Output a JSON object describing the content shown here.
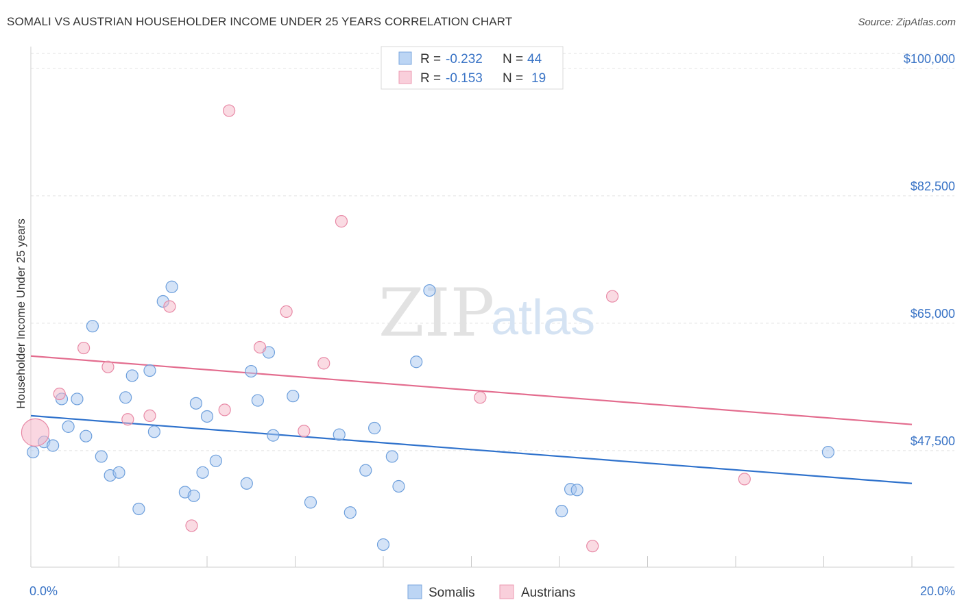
{
  "title": "SOMALI VS AUSTRIAN HOUSEHOLDER INCOME UNDER 25 YEARS CORRELATION CHART",
  "source": "Source: ZipAtlas.com",
  "watermark": {
    "zip": "ZIP",
    "atlas": "atlas"
  },
  "legend": {
    "rows": [
      {
        "r_label": "R = ",
        "r_value": "-0.232",
        "n_label": "N = ",
        "n_value": "44",
        "color": "#a9c8f0"
      },
      {
        "r_label": "R = ",
        "r_value": "-0.153",
        "n_label": "N = ",
        "n_value": "19",
        "color": "#f6b7c8"
      }
    ]
  },
  "bottom_legend": [
    {
      "label": "Somalis",
      "color": "#a9c8f0"
    },
    {
      "label": "Austrians",
      "color": "#f6b7c8"
    }
  ],
  "chart_data": {
    "type": "scatter",
    "title": "SOMALI VS AUSTRIAN HOUSEHOLDER INCOME UNDER 25 YEARS CORRELATION CHART",
    "xlabel": "",
    "ylabel": "Householder Income Under 25 years",
    "xlim": [
      0,
      20
    ],
    "ylim": [
      31500,
      103000
    ],
    "x_tick_labels": [
      {
        "value": 0,
        "label": "0.0%"
      },
      {
        "value": 20,
        "label": "20.0%"
      }
    ],
    "y_ticks": [
      {
        "value": 47500,
        "label": "$47,500"
      },
      {
        "value": 65000,
        "label": "$65,000"
      },
      {
        "value": 82500,
        "label": "$82,500"
      },
      {
        "value": 100000,
        "label": "$100,000"
      }
    ],
    "grid": true,
    "series": [
      {
        "name": "Somalis",
        "color": "#a9c8f0",
        "stroke": "#6d9fdc",
        "trend_color": "#2f72cc",
        "trend": [
          [
            0,
            52300
          ],
          [
            20,
            43000
          ]
        ],
        "points": [
          [
            0.05,
            47300
          ],
          [
            0.3,
            48700
          ],
          [
            0.5,
            48200
          ],
          [
            0.7,
            54600
          ],
          [
            1.05,
            54600
          ],
          [
            0.85,
            50800
          ],
          [
            1.25,
            49500
          ],
          [
            1.4,
            64600
          ],
          [
            1.6,
            46700
          ],
          [
            1.8,
            44100
          ],
          [
            2.0,
            44500
          ],
          [
            2.15,
            54800
          ],
          [
            2.3,
            57800
          ],
          [
            2.45,
            39500
          ],
          [
            2.7,
            58500
          ],
          [
            2.8,
            50100
          ],
          [
            3.0,
            68000
          ],
          [
            3.2,
            70000
          ],
          [
            3.5,
            41800
          ],
          [
            3.7,
            41300
          ],
          [
            3.75,
            54000
          ],
          [
            3.9,
            44500
          ],
          [
            4.0,
            52200
          ],
          [
            4.2,
            46100
          ],
          [
            4.9,
            43000
          ],
          [
            5.0,
            58400
          ],
          [
            5.15,
            54400
          ],
          [
            5.4,
            61000
          ],
          [
            5.5,
            49600
          ],
          [
            5.95,
            55000
          ],
          [
            6.35,
            40400
          ],
          [
            7.0,
            49700
          ],
          [
            7.25,
            39000
          ],
          [
            7.6,
            44800
          ],
          [
            7.8,
            50600
          ],
          [
            8.0,
            34600
          ],
          [
            8.2,
            46700
          ],
          [
            8.35,
            42600
          ],
          [
            8.75,
            59700
          ],
          [
            9.05,
            69500
          ],
          [
            12.05,
            39200
          ],
          [
            12.25,
            42200
          ],
          [
            12.4,
            42100
          ],
          [
            18.1,
            47300
          ]
        ]
      },
      {
        "name": "Austrians",
        "color": "#f6b7c8",
        "stroke": "#e889a6",
        "trend_color": "#e36c8e",
        "trend": [
          [
            0,
            60500
          ],
          [
            20,
            51100
          ]
        ],
        "points": [
          [
            0.1,
            50000
          ],
          [
            0.65,
            55300
          ],
          [
            1.2,
            61600
          ],
          [
            1.75,
            59000
          ],
          [
            2.2,
            51800
          ],
          [
            2.7,
            52300
          ],
          [
            3.15,
            67300
          ],
          [
            3.65,
            37200
          ],
          [
            4.4,
            53100
          ],
          [
            4.5,
            94200
          ],
          [
            5.2,
            61700
          ],
          [
            5.8,
            66600
          ],
          [
            6.2,
            50200
          ],
          [
            6.65,
            59500
          ],
          [
            7.05,
            79000
          ],
          [
            10.2,
            54800
          ],
          [
            12.75,
            34400
          ],
          [
            13.2,
            68700
          ],
          [
            16.2,
            43600
          ]
        ]
      }
    ]
  }
}
